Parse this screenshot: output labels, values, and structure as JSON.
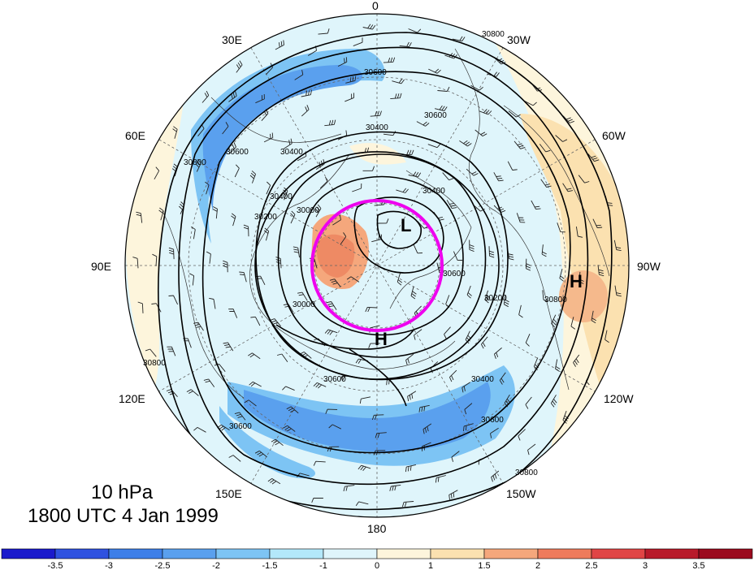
{
  "map": {
    "level_label": "10 hPa",
    "time_label": "1800 UTC 4 Jan 1999",
    "longitude_labels": [
      "0",
      "30W",
      "60W",
      "90W",
      "120W",
      "150W",
      "180",
      "150E",
      "120E",
      "90E",
      "60E",
      "30E"
    ],
    "contour_labels": [
      "30600",
      "30400",
      "30400",
      "30600",
      "30800",
      "30800",
      "30400",
      "30200",
      "30000",
      "30600",
      "30600",
      "30800",
      "30400",
      "30600",
      "30800",
      "30600",
      "30600",
      "30000",
      "30200",
      "30400",
      "30800"
    ],
    "pressure_centers": [
      {
        "letter": "L"
      },
      {
        "letter": "H"
      },
      {
        "letter": "H"
      }
    ],
    "highlight_circle_color": "#ee00ee"
  },
  "colorbar": {
    "tick_labels": [
      "-3.5",
      "-3",
      "-2.5",
      "-2",
      "-1.5",
      "-1",
      "0",
      "1",
      "1.5",
      "2",
      "2.5",
      "3",
      "3.5"
    ],
    "colors": [
      "#1a1acc",
      "#2f52e0",
      "#3d7fe8",
      "#5aa0ee",
      "#7dc4f4",
      "#b3e8fa",
      "#dff5fb",
      "#fdf5dc",
      "#fbe1b0",
      "#f5a77c",
      "#ee7b5c",
      "#e04545",
      "#b81a2a",
      "#9b0a1e"
    ]
  }
}
